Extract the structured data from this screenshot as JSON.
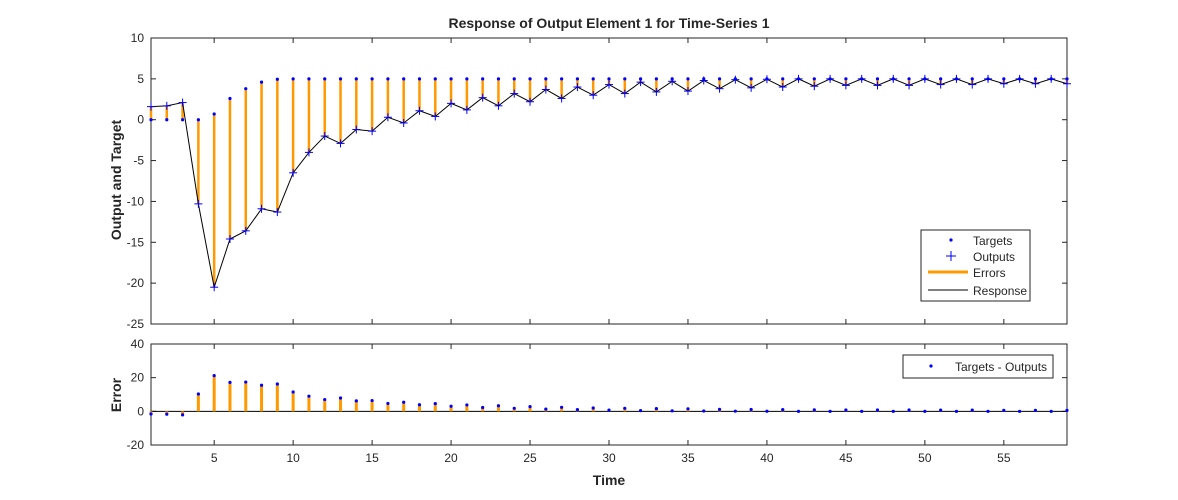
{
  "chart_data": [
    {
      "type": "line",
      "title": "Response of Output Element 1 for Time-Series 1",
      "xlabel": "",
      "ylabel": "Output and Target",
      "xlim": [
        1,
        59
      ],
      "ylim": [
        -25,
        10
      ],
      "yticks": [
        -25,
        -20,
        -15,
        -10,
        -5,
        0,
        5,
        10
      ],
      "grid": false,
      "legend_position": "bottom-right",
      "legend": [
        "Targets",
        "Outputs",
        "Errors",
        "Response"
      ],
      "colors": {
        "targets": "#0000ff",
        "outputs": "#0000ff",
        "errors": "#ff9900",
        "response": "#000000"
      },
      "x": [
        1,
        2,
        3,
        4,
        5,
        6,
        7,
        8,
        9,
        10,
        11,
        12,
        13,
        14,
        15,
        16,
        17,
        18,
        19,
        20,
        21,
        22,
        23,
        24,
        25,
        26,
        27,
        28,
        29,
        30,
        31,
        32,
        33,
        34,
        35,
        36,
        37,
        38,
        39,
        40,
        41,
        42,
        43,
        44,
        45,
        46,
        47,
        48,
        49,
        50,
        51,
        52,
        53,
        54,
        55,
        56,
        57,
        58,
        59
      ],
      "series": [
        {
          "name": "Targets",
          "values": [
            0,
            0,
            0,
            0,
            0.7,
            2.6,
            3.8,
            4.6,
            4.95,
            5,
            5,
            5,
            5,
            5,
            5,
            5,
            5,
            5,
            5,
            5,
            5,
            5,
            5,
            5,
            5,
            5,
            5,
            5,
            5,
            5,
            5,
            5,
            5,
            5,
            5,
            5,
            5,
            5,
            5,
            5,
            5,
            5,
            5,
            5,
            5,
            5,
            5,
            5,
            5,
            5,
            5,
            5,
            5,
            5,
            5,
            5,
            5,
            5,
            5
          ]
        },
        {
          "name": "Outputs",
          "values": [
            1.6,
            1.7,
            2.1,
            -10.3,
            -20.5,
            -14.6,
            -13.6,
            -10.9,
            -11.3,
            -6.5,
            -4,
            -2,
            -2.9,
            -1.2,
            -1.4,
            0.3,
            -0.4,
            1.1,
            0.4,
            2,
            1.2,
            2.7,
            1.7,
            3.2,
            2.2,
            3.7,
            2.6,
            4,
            3,
            4.3,
            3.2,
            4.6,
            3.4,
            4.7,
            3.5,
            4.8,
            3.8,
            4.9,
            3.9,
            4.95,
            4,
            5,
            4.1,
            5,
            4.2,
            5,
            4.2,
            5,
            4.2,
            5,
            4.3,
            5,
            4.3,
            5,
            4.4,
            5,
            4.4,
            5,
            4.4
          ]
        }
      ]
    },
    {
      "type": "bar",
      "title": "",
      "xlabel": "Time",
      "ylabel": "Error",
      "xlim": [
        1,
        59
      ],
      "ylim": [
        -20,
        40
      ],
      "yticks": [
        -20,
        0,
        20,
        40
      ],
      "xticks": [
        5,
        10,
        15,
        20,
        25,
        30,
        35,
        40,
        45,
        50,
        55
      ],
      "grid": false,
      "legend_position": "top-right",
      "legend": [
        "Targets - Outputs"
      ],
      "colors": {
        "points": "#0000ff",
        "stems": "#ff9900"
      },
      "x": [
        1,
        2,
        3,
        4,
        5,
        6,
        7,
        8,
        9,
        10,
        11,
        12,
        13,
        14,
        15,
        16,
        17,
        18,
        19,
        20,
        21,
        22,
        23,
        24,
        25,
        26,
        27,
        28,
        29,
        30,
        31,
        32,
        33,
        34,
        35,
        36,
        37,
        38,
        39,
        40,
        41,
        42,
        43,
        44,
        45,
        46,
        47,
        48,
        49,
        50,
        51,
        52,
        53,
        54,
        55,
        56,
        57,
        58,
        59
      ],
      "series": [
        {
          "name": "Targets - Outputs",
          "values": [
            -1.6,
            -1.7,
            -2.1,
            10.3,
            21.2,
            17.2,
            17.4,
            15.5,
            16.25,
            11.5,
            9,
            7,
            7.9,
            6.2,
            6.4,
            4.7,
            5.4,
            3.9,
            4.6,
            3,
            3.8,
            2.3,
            3.3,
            1.8,
            2.8,
            1.3,
            2.4,
            1,
            2,
            0.7,
            1.8,
            0.4,
            1.6,
            0.3,
            1.5,
            0.2,
            1.2,
            0.1,
            1.1,
            0.05,
            1,
            0,
            0.9,
            0,
            0.8,
            0,
            0.8,
            0,
            0.8,
            0,
            0.7,
            0,
            0.7,
            0,
            0.6,
            0,
            0.6,
            0,
            0.6
          ]
        }
      ]
    }
  ]
}
